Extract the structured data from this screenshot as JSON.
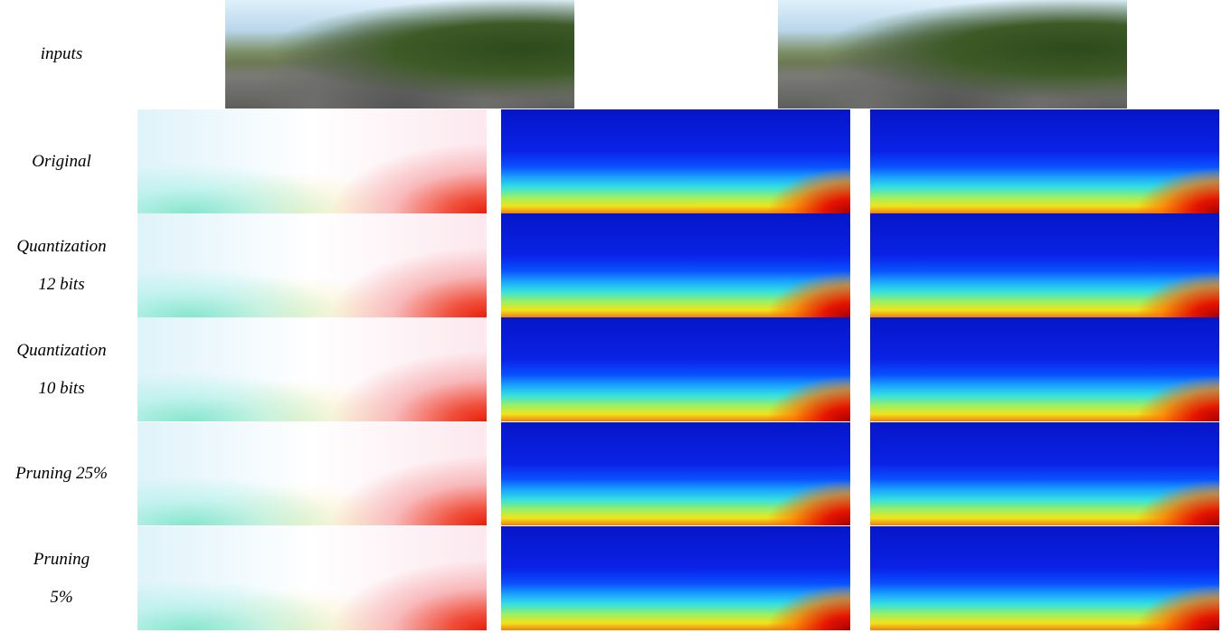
{
  "rows": [
    {
      "label": [
        "inputs"
      ]
    },
    {
      "label": [
        "Original"
      ]
    },
    {
      "label": [
        "Quantization",
        "12 bits"
      ]
    },
    {
      "label": [
        "Quantization",
        "10 bits"
      ]
    },
    {
      "label": [
        "Pruning 25%"
      ]
    },
    {
      "label": [
        "Pruning",
        "5%"
      ]
    }
  ]
}
